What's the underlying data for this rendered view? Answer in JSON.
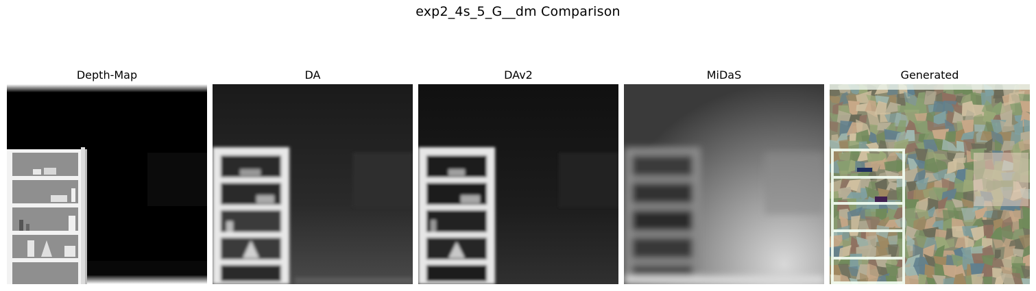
{
  "figure": {
    "title": "exp2_4s_5_G__dm Comparison"
  },
  "panels": [
    {
      "title": "Depth-Map"
    },
    {
      "title": "DA"
    },
    {
      "title": "DAv2"
    },
    {
      "title": "MiDaS"
    },
    {
      "title": "Generated"
    }
  ]
}
